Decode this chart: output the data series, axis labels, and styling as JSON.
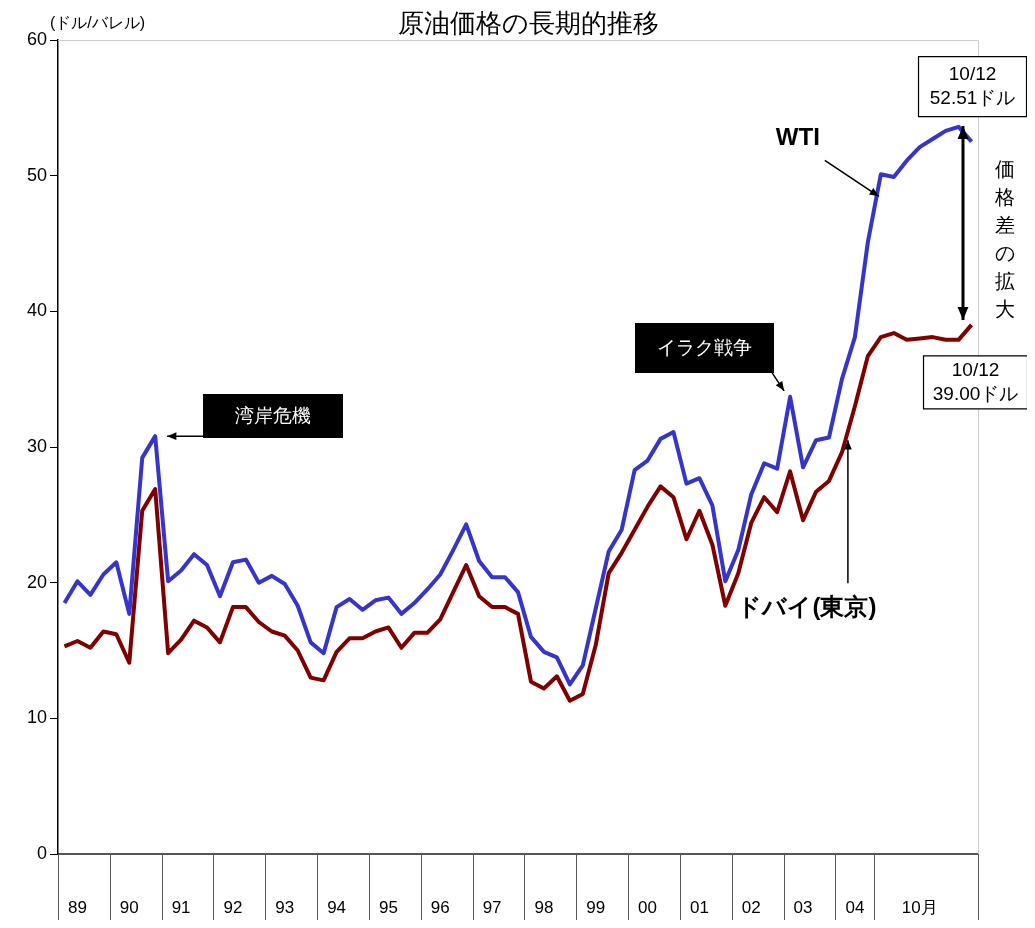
{
  "chart_data": {
    "type": "line",
    "title": "原油価格の長期的推移",
    "ylabel": "(ドル/バレル)",
    "categories": [
      null,
      "89",
      null,
      null,
      null,
      "90",
      null,
      null,
      null,
      "91",
      null,
      null,
      null,
      "92",
      null,
      null,
      null,
      "93",
      null,
      null,
      null,
      "94",
      null,
      null,
      null,
      "95",
      null,
      null,
      null,
      "96",
      null,
      null,
      null,
      "97",
      null,
      null,
      null,
      "98",
      null,
      null,
      null,
      "99",
      null,
      null,
      null,
      "00",
      null,
      null,
      null,
      "01",
      null,
      null,
      null,
      "02",
      null,
      null,
      null,
      "03",
      null,
      null,
      null,
      "04",
      null,
      null,
      null,
      null,
      "10月",
      null,
      null,
      null,
      null
    ],
    "ylim": [
      0,
      60
    ],
    "yticks": [
      0,
      10,
      20,
      30,
      40,
      50,
      60
    ],
    "grid": false,
    "legend": false,
    "marker": "none",
    "series": [
      {
        "name": "WTI",
        "color": "#3535cc",
        "values": [
          18.5,
          20.1,
          19.1,
          20.6,
          21.5,
          17.7,
          29.2,
          30.8,
          20.1,
          20.9,
          22.1,
          21.3,
          19.0,
          21.5,
          21.7,
          20.0,
          20.5,
          19.9,
          18.3,
          15.6,
          14.8,
          18.2,
          18.8,
          18.0,
          18.7,
          18.9,
          17.7,
          18.5,
          19.5,
          20.6,
          22.4,
          24.3,
          21.6,
          20.4,
          20.4,
          19.3,
          16.0,
          14.9,
          14.5,
          12.5,
          13.9,
          18.1,
          22.3,
          23.9,
          28.3,
          29.0,
          30.6,
          31.1,
          27.3,
          27.7,
          25.7,
          20.1,
          22.4,
          26.5,
          28.8,
          28.4,
          33.7,
          28.5,
          30.5,
          30.7,
          35.0,
          38.1,
          45.1,
          50.1,
          49.9,
          51.1,
          52.1,
          52.7,
          53.3,
          53.6,
          52.51
        ]
      },
      {
        "name": "ドバイ(東京)",
        "color": "#800000",
        "values": [
          15.3,
          15.7,
          15.2,
          16.4,
          16.2,
          14.1,
          25.3,
          26.9,
          14.8,
          15.8,
          17.2,
          16.7,
          15.6,
          18.2,
          18.2,
          17.1,
          16.4,
          16.1,
          15.0,
          13.0,
          12.8,
          14.9,
          15.9,
          15.9,
          16.4,
          16.7,
          15.2,
          16.3,
          16.3,
          17.3,
          19.3,
          21.3,
          19.0,
          18.2,
          18.2,
          17.7,
          12.7,
          12.2,
          13.1,
          11.3,
          11.8,
          15.4,
          20.7,
          22.2,
          23.9,
          25.6,
          27.1,
          26.3,
          23.2,
          25.3,
          22.8,
          18.3,
          20.7,
          24.4,
          26.3,
          25.2,
          28.2,
          24.6,
          26.7,
          27.5,
          29.6,
          33.0,
          36.7,
          38.1,
          38.4,
          37.9,
          38.0,
          38.1,
          37.9,
          37.9,
          39.0
        ]
      }
    ],
    "annotations": [
      "湾岸危機",
      "イラク戦争",
      "10/12\n52.51ドル",
      "10/12\n39.00ドル",
      "価格差の拡大"
    ]
  }
}
